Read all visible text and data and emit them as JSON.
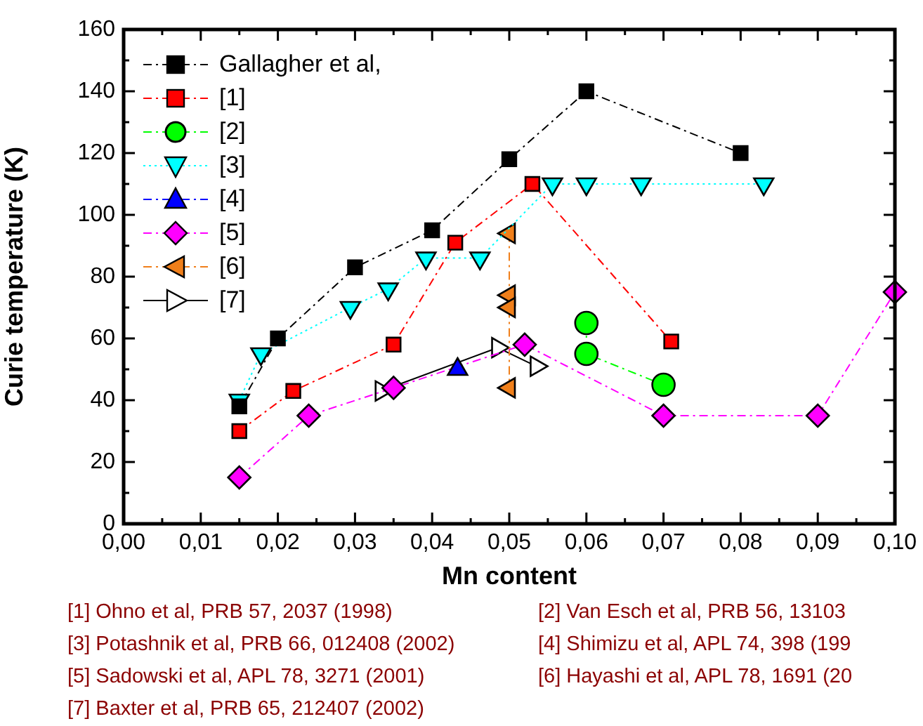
{
  "chart_data": {
    "type": "line",
    "xlabel": "Mn content",
    "ylabel": "Curie temperature (K)",
    "xlim": [
      0,
      0.1
    ],
    "ylim": [
      0,
      160
    ],
    "xticks": [
      {
        "value": 0,
        "label": "0,00"
      },
      {
        "value": 0.005,
        "label": null
      },
      {
        "value": 0.01,
        "label": "0,01"
      },
      {
        "value": 0.015,
        "label": null
      },
      {
        "value": 0.02,
        "label": "0,02"
      },
      {
        "value": 0.025,
        "label": null
      },
      {
        "value": 0.03,
        "label": "0,03"
      },
      {
        "value": 0.035,
        "label": null
      },
      {
        "value": 0.04,
        "label": "0,04"
      },
      {
        "value": 0.045,
        "label": null
      },
      {
        "value": 0.05,
        "label": "0,05"
      },
      {
        "value": 0.055,
        "label": null
      },
      {
        "value": 0.06,
        "label": "0,06"
      },
      {
        "value": 0.065,
        "label": null
      },
      {
        "value": 0.07,
        "label": "0,07"
      },
      {
        "value": 0.075,
        "label": null
      },
      {
        "value": 0.08,
        "label": "0,08"
      },
      {
        "value": 0.085,
        "label": null
      },
      {
        "value": 0.09,
        "label": "0,09"
      },
      {
        "value": 0.095,
        "label": null
      },
      {
        "value": 0.1,
        "label": "0,10"
      }
    ],
    "yticks": [
      0,
      {
        "value": 10,
        "label": null
      },
      20,
      {
        "value": 30,
        "label": null
      },
      40,
      {
        "value": 50,
        "label": null
      },
      60,
      {
        "value": 70,
        "label": null
      },
      80,
      {
        "value": 90,
        "label": null
      },
      100,
      {
        "value": 110,
        "label": null
      },
      120,
      {
        "value": 130,
        "label": null
      },
      140,
      {
        "value": 150,
        "label": null
      },
      160
    ],
    "grid": false,
    "legend": "top left",
    "series": [
      {
        "name": "Gallagher et al,",
        "color": "#000000",
        "marker": "square",
        "line_style": "dashdot",
        "x": [
          0.015,
          0.02,
          0.03,
          0.04,
          0.05,
          0.06,
          0.08
        ],
        "values": [
          38,
          60,
          83,
          95,
          118,
          140,
          120
        ]
      },
      {
        "name": "[1]",
        "color": "#ff0000",
        "marker": "square",
        "line_style": "dashdot",
        "x": [
          0.015,
          0.022,
          0.035,
          0.043,
          0.053,
          0.071
        ],
        "values": [
          30,
          43,
          58,
          91,
          110,
          59
        ]
      },
      {
        "name": "[2]",
        "color": "#00ff00",
        "marker": "circle",
        "line_style": "dashdot",
        "x": [
          0.06,
          0.06,
          0.07
        ],
        "values": [
          65,
          55,
          45
        ]
      },
      {
        "name": "[3]",
        "color": "#00ffff",
        "marker": "triangle-down",
        "line_style": "dotted",
        "x": [
          0.015,
          0.0178,
          0.0294,
          0.0343,
          0.0392,
          0.0462,
          0.0556,
          0.06,
          0.0671,
          0.083
        ],
        "values": [
          40,
          55,
          70,
          76,
          86,
          86,
          110,
          110,
          110,
          110
        ]
      },
      {
        "name": "[4]",
        "color": "#0000ff",
        "marker": "triangle",
        "line_style": "dashdot",
        "x": [
          0.0433
        ],
        "values": [
          50
        ]
      },
      {
        "name": "[5]",
        "color": "#ff00ff",
        "marker": "diamond",
        "line_style": "dashdot",
        "x": [
          0.015,
          0.024,
          0.035,
          0.052,
          0.07,
          0.09,
          0.1
        ],
        "values": [
          15,
          35,
          44,
          58,
          35,
          35,
          75
        ]
      },
      {
        "name": "[6]",
        "color": "#f07f1a",
        "marker": "triangle-left",
        "line_style": "dashdot",
        "x": [
          0.05,
          0.05,
          0.05,
          0.05
        ],
        "values": [
          94,
          74,
          70,
          44
        ]
      },
      {
        "name": "[7]",
        "color": "#000000",
        "marker": "triangle-right-open",
        "line_style": "solid",
        "x": [
          0.0334,
          0.0485,
          0.0535
        ],
        "values": [
          43,
          57,
          51
        ]
      }
    ],
    "annotations": [
      "[1] Ohno et al, PRB 57, 2037 (1998)",
      "[2] Van Esch et al, PRB 56, 13103",
      "[3] Potashnik et al, PRB 66, 012408 (2002)",
      "[4] Shimizu et al, APL 74, 398 (199",
      "[5] Sadowski et al, APL 78, 3271 (2001)",
      "[6] Hayashi et al, APL 78, 1691 (20",
      "[7] Baxter et al, PRB 65, 212407 (2002)"
    ]
  }
}
